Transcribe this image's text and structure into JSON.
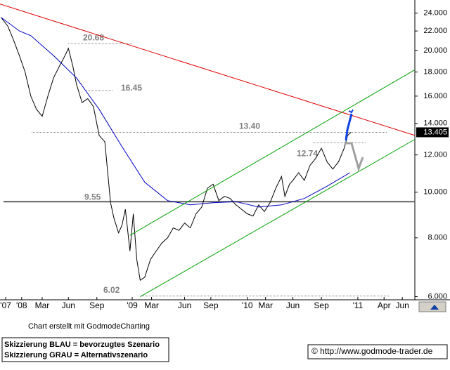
{
  "chart_data": {
    "type": "line",
    "log_scale": true,
    "ylim": [
      5.95,
      25.6
    ],
    "yticks": [
      {
        "value": 6,
        "label": "6.000"
      },
      {
        "value": 8,
        "label": "8.000"
      },
      {
        "value": 10,
        "label": "10.000"
      },
      {
        "value": 12,
        "label": "12.000"
      },
      {
        "value": 14,
        "label": "14.000"
      },
      {
        "value": 16,
        "label": "16.000"
      },
      {
        "value": 18,
        "label": "18.000"
      },
      {
        "value": 20,
        "label": "20.000"
      },
      {
        "value": 22,
        "label": "22.000"
      },
      {
        "value": 24,
        "label": "24.000"
      }
    ],
    "xlim": [
      2007.83,
      2011.47
    ],
    "xticks": [
      {
        "value": 2007.88,
        "label": "'07"
      },
      {
        "value": 2008.02,
        "label": "'08"
      },
      {
        "value": 2008.2,
        "label": "Mar"
      },
      {
        "value": 2008.43,
        "label": "Jun"
      },
      {
        "value": 2008.68,
        "label": "Sep"
      },
      {
        "value": 2008.99,
        "label": "'09"
      },
      {
        "value": 2009.16,
        "label": "Mar"
      },
      {
        "value": 2009.45,
        "label": "Jun"
      },
      {
        "value": 2009.68,
        "label": "Sep"
      },
      {
        "value": 2010.0,
        "label": "'10"
      },
      {
        "value": 2010.16,
        "label": "Mar"
      },
      {
        "value": 2010.4,
        "label": "Jun"
      },
      {
        "value": 2010.65,
        "label": "Sep"
      },
      {
        "value": 2010.97,
        "label": "'11"
      },
      {
        "value": 2011.2,
        "label": "Apr"
      },
      {
        "value": 2011.36,
        "label": "Jun"
      }
    ],
    "series": [
      {
        "name": "Kurs",
        "color": "#000000",
        "x": [
          2007.84,
          2007.9,
          2007.95,
          2008.0,
          2008.05,
          2008.1,
          2008.15,
          2008.2,
          2008.25,
          2008.3,
          2008.35,
          2008.4,
          2008.43,
          2008.47,
          2008.5,
          2008.55,
          2008.6,
          2008.65,
          2008.7,
          2008.75,
          2008.8,
          2008.83,
          2008.87,
          2008.9,
          2008.93,
          2008.97,
          2009.0,
          2009.03,
          2009.06,
          2009.1,
          2009.15,
          2009.2,
          2009.25,
          2009.3,
          2009.35,
          2009.4,
          2009.45,
          2009.5,
          2009.55,
          2009.6,
          2009.65,
          2009.7,
          2009.75,
          2009.8,
          2009.85,
          2009.9,
          2009.95,
          2010.0,
          2010.05,
          2010.1,
          2010.15,
          2010.2,
          2010.25,
          2010.3,
          2010.33,
          2010.37,
          2010.4,
          2010.45,
          2010.5,
          2010.55,
          2010.6,
          2010.65,
          2010.7,
          2010.75,
          2010.8,
          2010.85,
          2010.88,
          2010.91
        ],
        "values": [
          23.5,
          22.5,
          21.0,
          19.5,
          18.0,
          16.0,
          15.0,
          14.5,
          16.0,
          17.5,
          18.5,
          19.5,
          20.2,
          18.5,
          17.0,
          15.5,
          15.8,
          15.2,
          13.2,
          12.8,
          9.5,
          8.8,
          8.2,
          8.5,
          9.2,
          7.5,
          9.0,
          7.2,
          6.5,
          6.6,
          7.2,
          7.5,
          7.8,
          8.0,
          8.4,
          8.3,
          8.6,
          8.4,
          9.0,
          9.3,
          10.2,
          10.4,
          9.6,
          9.8,
          9.7,
          9.4,
          9.2,
          9.0,
          8.9,
          9.4,
          9.1,
          9.5,
          10.2,
          10.8,
          9.8,
          10.4,
          10.6,
          11.0,
          10.6,
          11.4,
          11.8,
          12.4,
          11.6,
          11.2,
          11.6,
          12.4,
          13.2,
          13.405
        ]
      },
      {
        "name": "GD",
        "color": "#0000c0",
        "x": [
          2007.84,
          2008.0,
          2008.1,
          2008.3,
          2008.5,
          2008.7,
          2008.9,
          2009.1,
          2009.3,
          2009.5,
          2009.7,
          2009.9,
          2010.1,
          2010.3,
          2010.5,
          2010.7,
          2010.9
        ],
        "values": [
          23.5,
          22.0,
          21.5,
          19.5,
          17.5,
          15.0,
          12.5,
          10.5,
          9.6,
          9.4,
          9.5,
          9.55,
          9.3,
          9.4,
          9.7,
          10.3,
          11.0
        ]
      },
      {
        "name": "Abwärtstrend",
        "color": "#e00000",
        "x": [
          2007.83,
          2011.47
        ],
        "values": [
          25.1,
          13.2
        ]
      },
      {
        "name": "Trendkanal oben",
        "color": "#00a000",
        "x": [
          2008.97,
          2011.47
        ],
        "values": [
          8.1,
          18.2
        ]
      },
      {
        "name": "Trendkanal unten",
        "color": "#00a000",
        "x": [
          2009.06,
          2011.47
        ],
        "values": [
          6.0,
          12.95
        ]
      }
    ],
    "levels": [
      {
        "value": 20.68,
        "label": "20.68"
      },
      {
        "value": 16.45,
        "label": "16.45"
      },
      {
        "value": 13.4,
        "label": "13.40"
      },
      {
        "value": 12.74,
        "label": "12.74"
      },
      {
        "value": 9.55,
        "label": "9.55"
      },
      {
        "value": 6.02,
        "label": "6.02"
      }
    ],
    "last_price": 13.405,
    "credit": "Chart erstellt mit GodmodeCharting",
    "legend_lines": [
      "Skizzierung BLAU = bevorzugtes Szenario",
      "Skizzierung GRAU = Alternativszenario"
    ],
    "copyright": "© http://www.godmode-trader.de"
  }
}
